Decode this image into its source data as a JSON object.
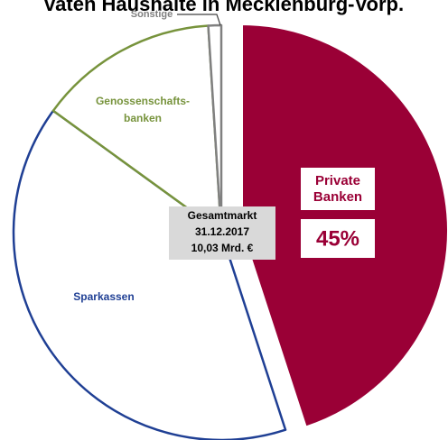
{
  "chart_data": {
    "type": "pie",
    "title": "vaten Haushalte in Mecklenburg-Vorp.",
    "categories": [
      "Private Banken",
      "Sparkassen",
      "Genossenschafts- banken",
      "Sonstige"
    ],
    "values": [
      45,
      40,
      14,
      1
    ],
    "value_labels": [
      "45%",
      null,
      null,
      null
    ],
    "colors": [
      "#9a0036",
      "#ffffff",
      "#ffffff",
      "#ffffff"
    ],
    "edge_colors": [
      "#ffffff",
      "#1f3f94",
      "#77933c",
      "#808080"
    ],
    "label_colors": [
      "#9a0036",
      "#1f3f94",
      "#77933c",
      "#808080"
    ],
    "annotation": [
      "Gesamtmarkt",
      "31.12.2017",
      "10,03 Mrd. €"
    ]
  }
}
